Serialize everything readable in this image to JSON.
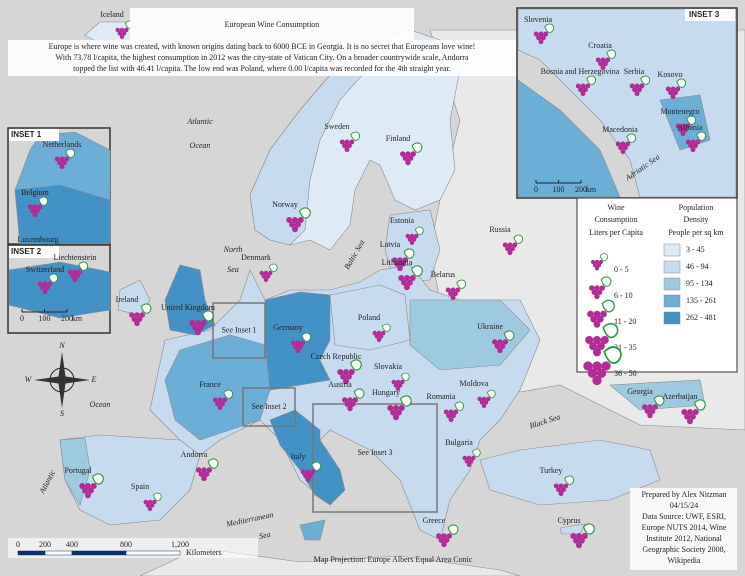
{
  "title": "European Wine Consumption",
  "description": [
    "Europe is where wine was created, with known origins dating back to 6000 BCE in Georgia. It is no secret that Europeans love wine!",
    "With 73.78 l/capita, the highest consumption in 2012 was the city-state of Vatican City. On a broader countrywide scale, Andorra",
    "topped the list with 46.41 l/capita. The low end was Poland, where 0.00 l/capita was recorded for the 4th straight year."
  ],
  "countries": [
    "Iceland",
    "Sweden",
    "Finland",
    "Norway",
    "Estonia",
    "Russia",
    "Latvia",
    "Lithuania",
    "Denmark",
    "Belarus",
    "Ireland",
    "United Kingdom",
    "Poland",
    "Germany",
    "Ukraine",
    "Czech Republic",
    "Slovakia",
    "France",
    "Austria",
    "Hungary",
    "Moldova",
    "Romania",
    "Georgia",
    "Azerbaijan",
    "Bulgaria",
    "Italy",
    "Andorra",
    "Portugal",
    "Spain",
    "Turkey",
    "Greece",
    "Cyprus"
  ],
  "seas": [
    "Atlantic",
    "Ocean",
    "North",
    "Sea",
    "Baltic Sea",
    "Ocean",
    "Atlantic",
    "Mediterranean",
    "Sea",
    "Black Sea"
  ],
  "see_insets": [
    "See Inset 1",
    "See Inset 2",
    "See Inset 3"
  ],
  "insets": [
    {
      "title": "INSET 1",
      "labels": [
        "Netherlands",
        "Belgium",
        "Luxembourg"
      ],
      "scale": []
    },
    {
      "title": "INSET 2",
      "labels": [
        "Liechtenstein",
        "Switzerland"
      ],
      "scale": [
        "0",
        "100",
        "200",
        "km"
      ]
    },
    {
      "title": "INSET 3",
      "labels": [
        "Slovenia",
        "Croatia",
        "Bosnia and Herzegovina",
        "Serbia",
        "Kosovo",
        "Montenegro",
        "Macedonia",
        "Albania",
        "Adriatic Sea"
      ],
      "scale": [
        "0",
        "100",
        "200",
        "km"
      ]
    }
  ],
  "legend": {
    "wine_title": [
      "Wine",
      "Consumption"
    ],
    "wine_subtitle": "Liters per Capita",
    "wine_classes": [
      "0 - 5",
      "6 - 10",
      "11 - 20",
      "21 - 35",
      "36 - 50"
    ],
    "density_title": [
      "Population",
      "Density"
    ],
    "density_subtitle": "People per sq km",
    "density_classes": [
      "3 - 45",
      "46 - 94",
      "95 - 134",
      "135 - 261",
      "262 - 481"
    ]
  },
  "scale_bar": {
    "ticks": [
      "0",
      "200",
      "400",
      "800",
      "1,200"
    ],
    "unit": "Kilometers"
  },
  "compass": [
    "N",
    "E",
    "S",
    "W"
  ],
  "credits": [
    "Prepared by Alex Nitzman",
    "04/15/24",
    "Data Source: UWF, ESRI,",
    "Europe NUTS 2014, Wine",
    "Institute 2012, National",
    "Geographic Society 2008,",
    "Wikipedia"
  ],
  "projection": "Map Projection: Europe Albers Equal Area Conic"
}
